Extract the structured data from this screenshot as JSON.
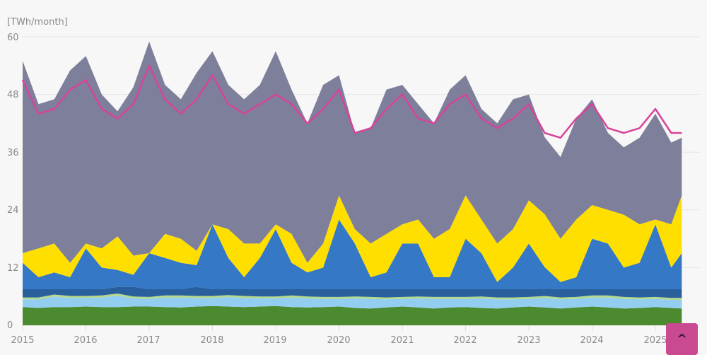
{
  "chart_data": {
    "type": "area",
    "stacked": true,
    "ylabel": "[TWh/month]",
    "ylim": [
      0,
      60
    ],
    "yticks": [
      "0",
      "12",
      "24",
      "36",
      "48",
      "60"
    ],
    "xticks": [
      "2015",
      "2016",
      "2017",
      "2018",
      "2019",
      "2020",
      "2021",
      "2022",
      "2023",
      "2024",
      "2025"
    ],
    "grid": true,
    "legend": "none",
    "x": [
      "2015-01",
      "2015-04",
      "2015-07",
      "2015-10",
      "2016-01",
      "2016-04",
      "2016-07",
      "2016-10",
      "2017-01",
      "2017-04",
      "2017-07",
      "2017-10",
      "2018-01",
      "2018-04",
      "2018-07",
      "2018-10",
      "2019-01",
      "2019-04",
      "2019-07",
      "2019-10",
      "2020-01",
      "2020-04",
      "2020-07",
      "2020-10",
      "2021-01",
      "2021-04",
      "2021-07",
      "2021-10",
      "2022-01",
      "2022-04",
      "2022-07",
      "2022-10",
      "2023-01",
      "2023-04",
      "2023-07",
      "2023-10",
      "2024-01",
      "2024-04",
      "2024-07",
      "2024-10",
      "2025-01",
      "2025-04",
      "2025-06"
    ],
    "series": [
      {
        "color": "#4b8a2e",
        "values": [
          3.8,
          3.6,
          3.8,
          3.8,
          3.9,
          3.8,
          3.8,
          3.9,
          3.9,
          3.8,
          3.7,
          3.9,
          4.0,
          3.9,
          3.8,
          3.9,
          4.0,
          3.8,
          3.7,
          3.8,
          3.9,
          3.6,
          3.5,
          3.7,
          3.9,
          3.7,
          3.5,
          3.7,
          3.8,
          3.6,
          3.5,
          3.7,
          3.9,
          3.7,
          3.5,
          3.7,
          3.9,
          3.7,
          3.5,
          3.6,
          3.8,
          3.6,
          3.5
        ]
      },
      {
        "color": "#93cdf0",
        "values": [
          1.6,
          1.8,
          2.2,
          1.9,
          1.8,
          2.0,
          2.4,
          1.7,
          1.6,
          2.0,
          2.1,
          1.8,
          1.7,
          2.0,
          1.9,
          1.7,
          1.6,
          2.0,
          1.9,
          1.7,
          1.6,
          2.0,
          2.0,
          1.7,
          1.6,
          1.9,
          2.0,
          1.8,
          1.7,
          2.0,
          1.9,
          1.7,
          1.6,
          2.0,
          1.9,
          1.8,
          1.9,
          2.1,
          2.0,
          1.8,
          1.7,
          1.7,
          1.8
        ]
      },
      {
        "color": "#b5d98a",
        "values": [
          0.4,
          0.4,
          0.4,
          0.4,
          0.4,
          0.4,
          0.4,
          0.4,
          0.4,
          0.4,
          0.4,
          0.4,
          0.4,
          0.4,
          0.4,
          0.4,
          0.4,
          0.4,
          0.4,
          0.4,
          0.4,
          0.4,
          0.4,
          0.4,
          0.4,
          0.4,
          0.4,
          0.4,
          0.4,
          0.4,
          0.4,
          0.4,
          0.4,
          0.4,
          0.4,
          0.4,
          0.4,
          0.4,
          0.4,
          0.4,
          0.4,
          0.4,
          0.4
        ]
      },
      {
        "color": "#2a5f9e",
        "values": [
          1.7,
          1.7,
          1.1,
          1.4,
          1.4,
          1.3,
          1.4,
          2.0,
          1.6,
          1.3,
          1.3,
          1.9,
          1.4,
          1.2,
          1.4,
          1.5,
          1.5,
          1.3,
          1.5,
          1.6,
          1.6,
          1.5,
          1.6,
          1.7,
          1.6,
          1.5,
          1.6,
          1.6,
          1.6,
          1.5,
          1.7,
          1.7,
          1.6,
          1.5,
          1.7,
          1.6,
          1.3,
          1.3,
          1.6,
          1.7,
          1.6,
          1.8,
          1.8
        ]
      },
      {
        "color": "#3478c6",
        "values": [
          5.5,
          2.5,
          3.5,
          2.5,
          8.5,
          4.5,
          3.5,
          2.5,
          7.5,
          6.5,
          5.5,
          4.5,
          13.5,
          6.5,
          2.5,
          6.5,
          12.5,
          5.5,
          3.5,
          4.5,
          14.5,
          9.5,
          2.5,
          3.5,
          9.5,
          9.5,
          2.5,
          2.5,
          10.5,
          7.5,
          1.5,
          4.5,
          9.5,
          4.5,
          1.5,
          2.5,
          10.5,
          9.5,
          4.5,
          5.5,
          13.5,
          4.5,
          7.5
        ]
      },
      {
        "color": "#ffdf00",
        "values": [
          2,
          6,
          6,
          3,
          1,
          4,
          7,
          4,
          0,
          5,
          5,
          3,
          0,
          6,
          7,
          3,
          1,
          6,
          2,
          5,
          5,
          3,
          7,
          8,
          4,
          5,
          8,
          10,
          9,
          7,
          8,
          8,
          9,
          11,
          9,
          12,
          7,
          7,
          11,
          8,
          1,
          9,
          12
        ]
      },
      {
        "color": "#7e7f9a",
        "values": [
          40,
          30,
          30,
          40,
          39,
          32,
          26,
          35,
          44,
          31,
          29,
          37,
          36,
          30,
          30,
          33,
          36,
          30,
          29,
          33,
          25,
          20,
          24,
          30,
          29,
          24,
          24,
          29,
          25,
          23,
          25,
          27,
          22,
          16,
          17,
          21,
          22,
          16,
          14,
          18,
          22,
          17,
          12
        ]
      }
    ],
    "line": {
      "color": "#d6449a",
      "values": [
        51,
        44,
        45,
        49,
        51,
        45,
        43,
        46,
        54,
        47,
        44,
        47,
        52,
        46,
        44,
        46,
        48,
        46,
        42,
        45,
        49,
        40,
        41,
        45,
        48,
        43,
        42,
        46,
        48,
        43,
        41,
        43,
        46,
        40,
        39,
        43,
        46,
        41,
        40,
        41,
        45,
        40,
        40
      ]
    }
  },
  "ui": {
    "scroll_top_icon": "chevron-up-icon",
    "scroll_top_glyph": "^",
    "accent": "#c94a90"
  }
}
